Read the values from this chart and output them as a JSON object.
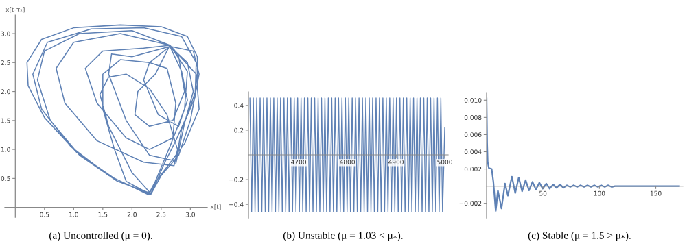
{
  "chart_data": [
    {
      "type": "line",
      "xlabel": "x[t]",
      "ylabel": "x[t-τ₂]",
      "annotations": [
        "(a) Uncontrolled (μ = 0)."
      ],
      "xlim": [
        -0.18,
        3.29
      ],
      "ylim": [
        -0.17,
        3.32
      ],
      "xticks": [
        0.5,
        {
          "value": 1.0,
          "label": "1.0"
        },
        1.5,
        {
          "value": 2.0,
          "label": "2.0"
        },
        2.5,
        {
          "value": 3.0,
          "label": "3.0"
        }
      ],
      "yticks": [
        0.5,
        {
          "value": 1.0,
          "label": "1.0"
        },
        1.5,
        {
          "value": 2.0,
          "label": "2.0"
        },
        2.5,
        {
          "value": 3.0,
          "label": "3.0"
        }
      ],
      "series": [
        {
          "color": "#5e81b5",
          "x": [
            2.3,
            1.7,
            1.05,
            0.5,
            0.22,
            0.2,
            0.45,
            1.0,
            1.8,
            2.5,
            2.95,
            3.12,
            3.12,
            2.95,
            2.75,
            2.55,
            2.38,
            2.32,
            2.0,
            1.6,
            1.45,
            1.6,
            1.9,
            2.3,
            2.6,
            2.78,
            2.72,
            2.2,
            1.4,
            0.85,
            0.7,
            1.0,
            1.8,
            2.65,
            2.95,
            2.9,
            2.65,
            2.4,
            2.28,
            1.6,
            0.95,
            0.45,
            0.3,
            0.55,
            1.3,
            2.2,
            2.85,
            3.1,
            3.08,
            2.85,
            2.75,
            2.3,
            1.9,
            1.6,
            1.65,
            2.0,
            2.65,
            2.85,
            2.95,
            2.8,
            2.45,
            2.2,
            2.3,
            2.6,
            2.75,
            2.7,
            2.3,
            1.9,
            1.4,
            1.2,
            1.5,
            2.2,
            2.65,
            3.1,
            3.15,
            2.9,
            2.45,
            2.3,
            1.75,
            1.1,
            0.6,
            0.38,
            0.5,
            1.1,
            2.0,
            2.65,
            2.4,
            2.1,
            2.05,
            2.3,
            2.7,
            2.9,
            2.8,
            2.65,
            3.05,
            3.15,
            3.0,
            2.8,
            2.5,
            2.32,
            1.9,
            1.7,
            1.5,
            1.5,
            1.8,
            2.3,
            2.65,
            2.95,
            3.05,
            2.9,
            2.75
          ],
          "values": [
            0.22,
            0.5,
            0.95,
            1.55,
            2.1,
            2.5,
            2.9,
            3.1,
            3.15,
            3.12,
            2.95,
            2.6,
            2.1,
            1.6,
            1.15,
            0.75,
            0.35,
            0.24,
            0.6,
            1.4,
            1.95,
            2.25,
            2.3,
            2.05,
            1.6,
            1.0,
            0.72,
            0.78,
            1.15,
            1.8,
            2.4,
            2.85,
            3.0,
            2.8,
            2.35,
            1.7,
            1.05,
            0.45,
            0.22,
            0.55,
            1.05,
            1.7,
            2.3,
            2.85,
            3.08,
            3.1,
            2.95,
            2.5,
            1.9,
            1.35,
            0.8,
            0.9,
            1.5,
            2.3,
            2.65,
            2.6,
            2.78,
            2.35,
            1.85,
            1.4,
            1.6,
            2.2,
            2.5,
            2.4,
            1.8,
            1.2,
            1.0,
            1.2,
            1.8,
            2.4,
            2.7,
            2.75,
            2.8,
            2.3,
            1.7,
            1.1,
            0.5,
            0.25,
            0.45,
            0.9,
            1.5,
            2.2,
            2.7,
            3.0,
            3.05,
            2.8,
            2.3,
            2.0,
            1.6,
            1.4,
            1.5,
            2.0,
            2.6,
            2.78,
            2.7,
            2.3,
            1.5,
            0.9,
            0.55,
            0.22,
            0.45,
            1.0,
            1.7,
            2.3,
            2.55,
            2.5,
            2.78,
            2.5,
            2.0,
            1.45,
            0.75
          ]
        }
      ]
    },
    {
      "type": "line",
      "annotations": [
        "(b) Unstable (μ = 1.03 < μ$_{*}$)."
      ],
      "xlim": [
        4597,
        5007
      ],
      "ylim": [
        -0.51,
        0.51
      ],
      "xticks": [
        4700,
        4800,
        4900,
        5000
      ],
      "yticks": [
        {
          "value": -0.4,
          "label": "−0.4"
        },
        {
          "value": -0.2,
          "label": "−0.2"
        },
        0.2,
        0.4
      ],
      "series": [
        {
          "color": "#5e81b5",
          "x": [
            4600,
            4603.5,
            4607,
            4610.5,
            4614,
            4617.5,
            4621,
            4624.5,
            4628,
            4631.5,
            4635,
            4638.5,
            4642,
            4645.5,
            4649,
            4652.5,
            4656,
            4659.5,
            4663,
            4666.5,
            4670,
            4673.5,
            4677,
            4680.5,
            4684,
            4687.5,
            4691,
            4694.5,
            4698,
            4701.5,
            4705,
            4708.5,
            4712,
            4715.5,
            4719,
            4722.5,
            4726,
            4729.5,
            4733,
            4736.5,
            4740,
            4743.5,
            4747,
            4750.5,
            4754,
            4757.5,
            4761,
            4764.5,
            4768,
            4771.5,
            4775,
            4778.5,
            4782,
            4785.5,
            4789,
            4792.5,
            4796,
            4799.5,
            4803,
            4806.5,
            4810,
            4813.5,
            4817,
            4820.5,
            4824,
            4827.5,
            4831,
            4834.5,
            4838,
            4841.5,
            4845,
            4848.5,
            4852,
            4855.5,
            4859,
            4862.5,
            4866,
            4869.5,
            4873,
            4876.5,
            4880,
            4883.5,
            4887,
            4890.5,
            4894,
            4897.5,
            4901,
            4904.5,
            4908,
            4911.5,
            4915,
            4918.5,
            4922,
            4925.5,
            4929,
            4932.5,
            4936,
            4939.5,
            4943,
            4946.5,
            4950,
            4953.5,
            4957,
            4960.5,
            4964,
            4967.5,
            4971,
            4974.5,
            4978,
            4981.5,
            4985,
            4988.5,
            4992,
            4995.5,
            5000
          ],
          "values": [
            0.46,
            -0.46,
            0.46,
            -0.46,
            0.46,
            -0.46,
            0.46,
            -0.46,
            0.46,
            -0.46,
            0.46,
            -0.46,
            0.46,
            -0.46,
            0.46,
            -0.46,
            0.46,
            -0.46,
            0.46,
            -0.46,
            0.46,
            -0.46,
            0.46,
            -0.46,
            0.46,
            -0.46,
            0.46,
            -0.46,
            0.46,
            -0.46,
            0.46,
            -0.46,
            0.46,
            -0.46,
            0.46,
            -0.46,
            0.46,
            -0.46,
            0.46,
            -0.46,
            0.46,
            -0.46,
            0.46,
            -0.46,
            0.46,
            -0.46,
            0.46,
            -0.46,
            0.46,
            -0.46,
            0.46,
            -0.46,
            0.46,
            -0.46,
            0.46,
            -0.46,
            0.46,
            -0.46,
            0.46,
            -0.46,
            0.46,
            -0.46,
            0.46,
            -0.46,
            0.46,
            -0.46,
            0.46,
            -0.46,
            0.46,
            -0.46,
            0.46,
            -0.46,
            0.46,
            -0.46,
            0.46,
            -0.46,
            0.46,
            -0.46,
            0.46,
            -0.46,
            0.46,
            -0.46,
            0.46,
            -0.46,
            0.46,
            -0.46,
            0.46,
            -0.46,
            0.46,
            -0.46,
            0.46,
            -0.46,
            0.46,
            -0.46,
            0.46,
            -0.46,
            0.46,
            -0.46,
            0.46,
            -0.46,
            0.46,
            -0.46,
            0.46,
            -0.46,
            0.46,
            -0.46,
            0.46,
            -0.46,
            0.46,
            -0.46,
            0.46,
            -0.46,
            0.46,
            -0.46,
            0.22
          ]
        }
      ]
    },
    {
      "type": "line",
      "annotations": [
        "(c) Stable (μ = 1.5 > μ$_{*}$)."
      ],
      "xlim": [
        0,
        174
      ],
      "ylim": [
        -0.0037,
        0.0109
      ],
      "xticks": [
        50,
        100,
        150
      ],
      "yticks": [
        {
          "value": -0.002,
          "label": "−0.002"
        },
        0.002,
        0.004,
        0.006,
        0.008,
        {
          "value": 0.01,
          "label": "0.010"
        }
      ],
      "series": [
        {
          "color": "#5e81b5",
          "x": [
            0,
            0.5,
            1,
            2,
            4.5,
            6,
            8.1,
            10,
            13.2,
            16.3,
            18.9,
            22.4,
            25.4,
            28.5,
            31.5,
            34.6,
            37.6,
            40.7,
            43.7,
            46.8,
            49.8,
            52.9,
            55.9,
            59,
            62,
            65.1,
            68.1,
            71.2,
            74.2,
            77.3,
            80.3,
            83.4,
            86.4,
            89.5,
            92.5,
            95.6,
            98.6,
            101.7,
            104.7,
            107.8,
            110.8,
            113.9,
            171
          ],
          "values": [
            0.0103,
            0.005,
            0.0028,
            0.0021,
            0.002,
            0.0005,
            -0.0029,
            -0.0005,
            -0.0026,
            0.0003,
            -0.0011,
            0.0011,
            -0.0008,
            0.001,
            -0.0006,
            0.0007,
            -0.0005,
            0.0005,
            -0.0004,
            0.0004,
            -0.0003,
            0.0003,
            -0.0003,
            0.0002,
            -0.0002,
            0.0002,
            -0.0002,
            0.0001,
            -0.0001,
            0.0001,
            -0.0001,
            0.0001,
            -0.0001,
            0.0001,
            -0.0001,
            0.0001,
            -0.0001,
            0.0001,
            -0.0001,
            0.0001,
            -0.0001,
            0,
            0
          ]
        }
      ]
    }
  ]
}
